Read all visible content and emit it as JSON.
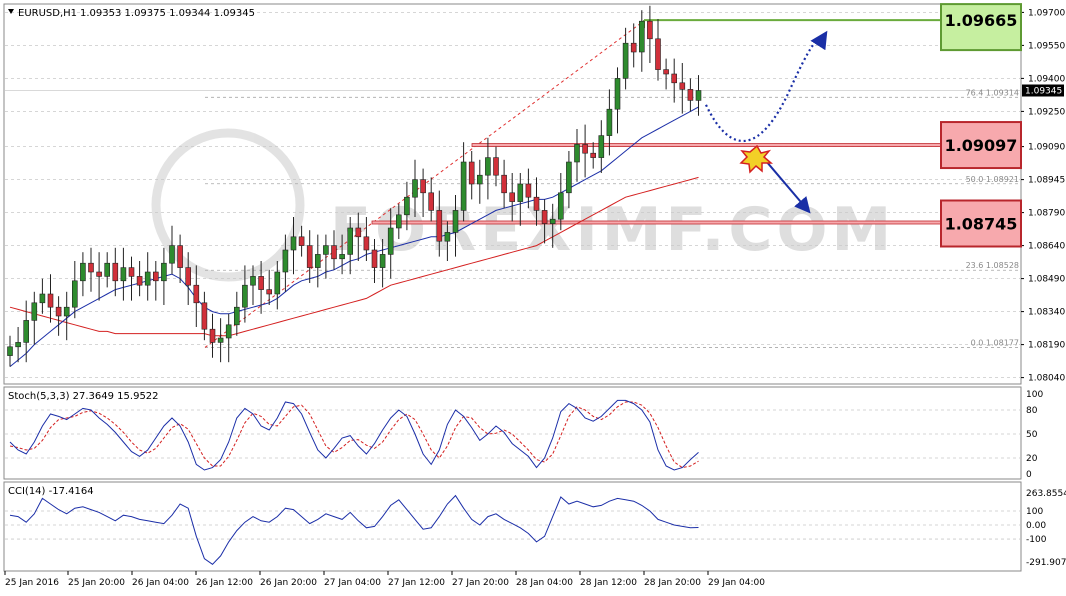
{
  "header": {
    "symbol": "EURUSD,H1",
    "ohlc": "1.09353 1.09375 1.09344 1.09345"
  },
  "stoch_header": "Stoch(5,3,3) 27.3649 15.9522",
  "cci_header": "CCI(14) -17.4164",
  "current_price_label": "1.09345",
  "watermark_text": "FOREXIMF.COM",
  "levels": {
    "resistance": {
      "label": "1.09665",
      "value": 1.09665,
      "color": "#6aab3c",
      "fill": "#c6efa0"
    },
    "pivot": {
      "label": "1.09097",
      "value": 1.09097,
      "color": "#c0292f",
      "fill": "#f7a9ad"
    },
    "support": {
      "label": "1.08745",
      "value": 1.08745,
      "color": "#c0292f",
      "fill": "#f7a9ad"
    }
  },
  "fibo": [
    {
      "label": "76.4  1.09314",
      "value": 1.09314
    },
    {
      "label": "50.0  1.08921",
      "value": 1.08921
    },
    {
      "label": "23.6  1.08528",
      "value": 1.08528
    },
    {
      "label": "0.0  1.08177",
      "value": 1.08177
    }
  ],
  "colors": {
    "bull": "#2e8b2e",
    "bear": "#d1303a",
    "ma_fast": "#1c2fa8",
    "ma_slow": "#d42020",
    "stoch_main": "#1c2fa8",
    "stoch_signal": "#d42020",
    "cci": "#1c2fa8",
    "arrow": "#1a2fa6"
  },
  "chart_data": [
    {
      "type": "candlestick",
      "title": "EURUSD,H1",
      "ylim": [
        1.0802,
        1.0972
      ],
      "yticks": [
        1.097,
        1.0955,
        1.094,
        1.0925,
        1.0909,
        1.0894,
        1.0879,
        1.0864,
        1.0849,
        1.0834,
        1.0819,
        1.0804
      ],
      "ytick_labels": [
        "1.09700",
        "1.09550",
        "1.09400",
        "1.09250",
        "1.09090",
        "1.08945",
        "1.08790",
        "1.08640",
        "1.08490",
        "1.08340",
        "1.08190",
        "1.08040"
      ],
      "xtick_labels": [
        "25 Jan 2016",
        "25 Jan 20:00",
        "26 Jan 04:00",
        "26 Jan 12:00",
        "26 Jan 20:00",
        "27 Jan 04:00",
        "27 Jan 12:00",
        "27 Jan 20:00",
        "28 Jan 04:00",
        "28 Jan 12:00",
        "28 Jan 20:00",
        "29 Jan 04:00"
      ],
      "close": [
        1.0818,
        1.082,
        1.083,
        1.0838,
        1.0842,
        1.0836,
        1.0832,
        1.0836,
        1.0848,
        1.0856,
        1.0852,
        1.085,
        1.0856,
        1.0848,
        1.0854,
        1.085,
        1.0846,
        1.0852,
        1.0848,
        1.0856,
        1.0864,
        1.0854,
        1.0846,
        1.0838,
        1.0826,
        1.082,
        1.0822,
        1.0828,
        1.0836,
        1.0846,
        1.085,
        1.0844,
        1.0842,
        1.0852,
        1.0862,
        1.0868,
        1.0864,
        1.0854,
        1.086,
        1.0864,
        1.0858,
        1.086,
        1.0872,
        1.0868,
        1.0862,
        1.0854,
        1.086,
        1.0872,
        1.0878,
        1.0886,
        1.0894,
        1.0888,
        1.088,
        1.0866,
        1.087,
        1.088,
        1.0902,
        1.0892,
        1.0896,
        1.0904,
        1.0896,
        1.0888,
        1.0884,
        1.0892,
        1.0886,
        1.088,
        1.0874,
        1.0876,
        1.0888,
        1.0902,
        1.091,
        1.0906,
        1.0904,
        1.0914,
        1.0926,
        1.094,
        1.0956,
        1.0952,
        1.0966,
        1.0958,
        1.0944,
        1.0942,
        1.0938,
        1.0935,
        1.093,
        1.09345
      ],
      "ma_fast": [
        1.0809,
        1.0812,
        1.0815,
        1.0819,
        1.0822,
        1.0825,
        1.0828,
        1.0831,
        1.0834,
        1.0836,
        1.0838,
        1.084,
        1.0842,
        1.0844,
        1.0845,
        1.0846,
        1.0847,
        1.0848,
        1.0849,
        1.085,
        1.0851,
        1.0849,
        1.0845,
        1.084,
        1.0836,
        1.0834,
        1.0833,
        1.0833,
        1.0834,
        1.0835,
        1.0836,
        1.0837,
        1.0838,
        1.084,
        1.0843,
        1.0846,
        1.0848,
        1.0849,
        1.085,
        1.0852,
        1.0853,
        1.0855,
        1.0857,
        1.0858,
        1.086,
        1.0861,
        1.0862,
        1.0863,
        1.0864,
        1.0865,
        1.0866,
        1.0867,
        1.0868,
        1.0868,
        1.0869,
        1.087,
        1.0872,
        1.0874,
        1.0876,
        1.0878,
        1.088,
        1.0881,
        1.0882,
        1.0883,
        1.0884,
        1.0885,
        1.0885,
        1.0886,
        1.0888,
        1.089,
        1.0892,
        1.0894,
        1.0896,
        1.0898,
        1.0901,
        1.0904,
        1.0907,
        1.091,
        1.0913,
        1.0915,
        1.0917,
        1.0919,
        1.0921,
        1.0923,
        1.0925,
        1.0927
      ],
      "ma_slow": [
        1.0836,
        1.0835,
        1.0834,
        1.0833,
        1.0832,
        1.0831,
        1.083,
        1.0829,
        1.0828,
        1.0827,
        1.0826,
        1.0825,
        1.0825,
        1.0824,
        1.0824,
        1.0824,
        1.0824,
        1.0824,
        1.0824,
        1.0824,
        1.0824,
        1.0824,
        1.0824,
        1.0824,
        1.0824,
        1.0823,
        1.0823,
        1.0823,
        1.0824,
        1.0825,
        1.0826,
        1.0827,
        1.0828,
        1.0829,
        1.083,
        1.0831,
        1.0832,
        1.0833,
        1.0834,
        1.0835,
        1.0836,
        1.0837,
        1.0838,
        1.0839,
        1.084,
        1.0842,
        1.0844,
        1.0846,
        1.0847,
        1.0848,
        1.0849,
        1.085,
        1.0851,
        1.0852,
        1.0853,
        1.0854,
        1.0855,
        1.0856,
        1.0857,
        1.0858,
        1.0859,
        1.086,
        1.0861,
        1.0862,
        1.0863,
        1.0864,
        1.0866,
        1.0868,
        1.087,
        1.0872,
        1.0874,
        1.0876,
        1.0878,
        1.088,
        1.0882,
        1.0884,
        1.0886,
        1.0887,
        1.0888,
        1.0889,
        1.089,
        1.0891,
        1.0892,
        1.0893,
        1.0894,
        1.0895
      ]
    },
    {
      "type": "line",
      "title": "Stoch(5,3,3) 27.3649 15.9522",
      "ylim": [
        0,
        100
      ],
      "yticks": [
        100,
        80,
        50,
        20,
        0
      ],
      "series": [
        {
          "name": "main",
          "values": [
            40,
            30,
            25,
            40,
            60,
            75,
            72,
            68,
            75,
            82,
            80,
            70,
            62,
            52,
            40,
            28,
            22,
            30,
            45,
            60,
            70,
            60,
            40,
            12,
            5,
            8,
            18,
            40,
            70,
            82,
            75,
            60,
            55,
            70,
            90,
            88,
            75,
            52,
            30,
            20,
            32,
            45,
            48,
            35,
            25,
            38,
            55,
            70,
            80,
            72,
            50,
            25,
            12,
            30,
            62,
            80,
            72,
            58,
            42,
            50,
            60,
            52,
            38,
            30,
            22,
            8,
            20,
            45,
            78,
            88,
            82,
            70,
            66,
            72,
            82,
            92,
            92,
            88,
            80,
            65,
            30,
            10,
            5,
            8,
            18,
            27
          ]
        },
        {
          "name": "signal",
          "values": [
            35,
            33,
            30,
            32,
            42,
            58,
            68,
            70,
            72,
            77,
            79,
            76,
            70,
            62,
            52,
            40,
            30,
            26,
            32,
            45,
            58,
            63,
            56,
            38,
            20,
            10,
            10,
            22,
            42,
            64,
            76,
            72,
            62,
            60,
            72,
            84,
            86,
            75,
            55,
            35,
            27,
            33,
            42,
            43,
            36,
            32,
            40,
            55,
            68,
            75,
            68,
            50,
            30,
            20,
            35,
            58,
            72,
            70,
            58,
            50,
            51,
            55,
            50,
            40,
            30,
            18,
            15,
            25,
            48,
            72,
            84,
            80,
            72,
            68,
            74,
            84,
            90,
            90,
            86,
            76,
            58,
            35,
            15,
            8,
            10,
            16
          ]
        }
      ]
    },
    {
      "type": "line",
      "title": "CCI(14) -17.4164",
      "ylim": [
        -291.9074,
        263.8554
      ],
      "yticks": [
        263.8554,
        100,
        0.0,
        -100,
        -291.9074
      ],
      "ytick_labels": [
        "263.8554",
        "100",
        "0.00",
        "-100",
        "-291.9074"
      ],
      "series": [
        {
          "name": "CCI(14)",
          "values": [
            70,
            60,
            20,
            80,
            190,
            150,
            110,
            80,
            120,
            130,
            110,
            90,
            60,
            30,
            70,
            60,
            40,
            30,
            20,
            10,
            70,
            150,
            120,
            -80,
            -240,
            -280,
            -220,
            -120,
            -40,
            20,
            60,
            30,
            20,
            60,
            120,
            110,
            60,
            10,
            40,
            80,
            60,
            40,
            90,
            30,
            -20,
            -10,
            60,
            140,
            180,
            110,
            40,
            -30,
            -20,
            60,
            150,
            210,
            120,
            40,
            0,
            60,
            80,
            40,
            10,
            -20,
            -60,
            -120,
            -80,
            60,
            200,
            150,
            170,
            150,
            130,
            140,
            170,
            190,
            180,
            170,
            140,
            100,
            40,
            20,
            0,
            -10,
            -20,
            -17.4
          ]
        }
      ]
    }
  ]
}
